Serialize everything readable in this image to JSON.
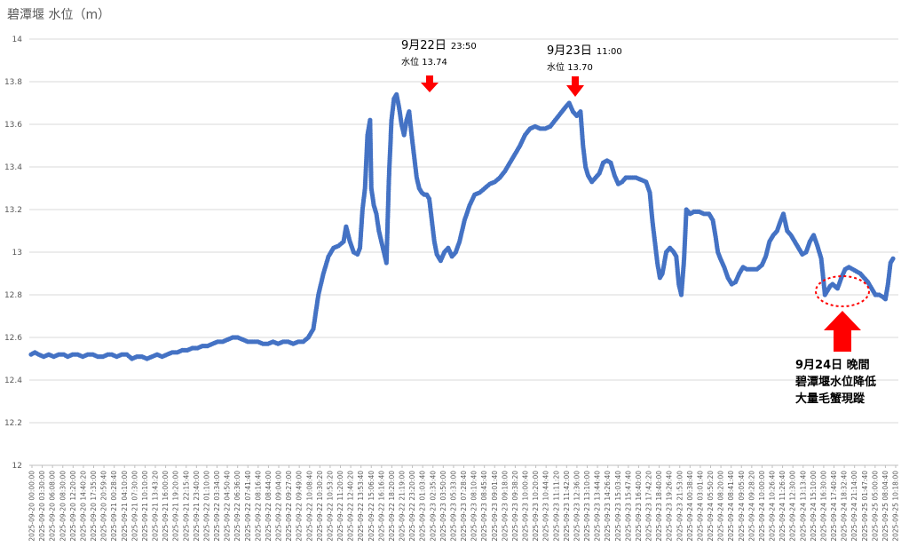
{
  "chart_data": {
    "type": "scatter",
    "title": "碧潭堰 水位（m）",
    "xlabel": "",
    "ylabel": "",
    "ylim": [
      12,
      14
    ],
    "y_ticks": [
      "12",
      "12.2",
      "12.4",
      "12.6",
      "12.8",
      "13",
      "13.2",
      "13.4",
      "13.6",
      "13.8",
      "14"
    ],
    "grid": true,
    "x_tick_labels": [
      "2025-09-20 00:00:00",
      "2025-09-20 03:30:00",
      "2025-09-20 06:08:00",
      "2025-09-20 08:30:00",
      "2025-09-20 12:20:00",
      "2025-09-20 14:40:20",
      "2025-09-20 17:35:00",
      "2025-09-20 20:59:40",
      "2025-09-21 00:28:40",
      "2025-09-21 04:10:00",
      "2025-09-21 07:30:00",
      "2025-09-21 10:10:00",
      "2025-09-21 13:43:20",
      "2025-09-21 16:00:00",
      "2025-09-21 19:20:00",
      "2025-09-21 22:15:40",
      "2025-09-21 23:40:00",
      "2025-09-22 01:10:00",
      "2025-09-22 03:34:00",
      "2025-09-22 04:50:40",
      "2025-09-22 06:36:00",
      "2025-09-22 07:41:40",
      "2025-09-22 08:16:40",
      "2025-09-22 08:44:00",
      "2025-09-22 09:04:00",
      "2025-09-22 09:27:00",
      "2025-09-22 09:49:00",
      "2025-09-22 10:08:40",
      "2025-09-22 10:30:20",
      "2025-09-22 10:53:20",
      "2025-09-22 11:20:00",
      "2025-09-22 12:40:20",
      "2025-09-22 13:53:40",
      "2025-09-22 15:06:40",
      "2025-09-22 16:16:40",
      "2025-09-22 18:20:00",
      "2025-09-22 21:19:00",
      "2025-09-22 23:20:00",
      "2025-09-23 01:03:40",
      "2025-09-23 02:35:40",
      "2025-09-23 03:50:00",
      "2025-09-23 05:33:00",
      "2025-09-23 07:28:40",
      "2025-09-23 08:10:40",
      "2025-09-23 08:45:40",
      "2025-09-23 09:01:40",
      "2025-09-23 09:18:00",
      "2025-09-23 09:38:20",
      "2025-09-23 10:00:40",
      "2025-09-23 10:20:00",
      "2025-09-23 10:44:40",
      "2025-09-23 11:11:20",
      "2025-09-23 11:42:00",
      "2025-09-23 12:36:00",
      "2025-09-23 13:10:00",
      "2025-09-23 13:44:40",
      "2025-09-23 14:26:40",
      "2025-09-23 15:03:40",
      "2025-09-23 15:47:40",
      "2025-09-23 16:40:00",
      "2025-09-23 17:42:20",
      "2025-09-23 18:40:00",
      "2025-09-23 19:26:40",
      "2025-09-23 21:53:00",
      "2025-09-24 00:38:40",
      "2025-09-24 03:01:40",
      "2025-09-24 05:50:20",
      "2025-09-24 08:20:00",
      "2025-09-24 08:41:40",
      "2025-09-24 09:05:40",
      "2025-09-24 09:28:20",
      "2025-09-24 10:00:00",
      "2025-09-24 10:26:40",
      "2025-09-24 11:26:40",
      "2025-09-24 12:30:00",
      "2025-09-24 13:13:40",
      "2025-09-24 15:10:00",
      "2025-09-24 16:30:00",
      "2025-09-24 17:40:40",
      "2025-09-24 18:32:40",
      "2025-09-24 21:14:00",
      "2025-09-25 01:47:40",
      "2025-09-25 05:00:00",
      "2025-09-25 08:04:40",
      "2025-09-25 10:18:00"
    ],
    "series": [
      {
        "color": "#4472c4",
        "values": [
          [
            0,
            12.52
          ],
          [
            3,
            12.53
          ],
          [
            6,
            12.52
          ],
          [
            10,
            12.51
          ],
          [
            14,
            12.52
          ],
          [
            18,
            12.51
          ],
          [
            22,
            12.52
          ],
          [
            26,
            12.52
          ],
          [
            29,
            12.51
          ],
          [
            33,
            12.52
          ],
          [
            37,
            12.52
          ],
          [
            41,
            12.51
          ],
          [
            45,
            12.52
          ],
          [
            49,
            12.52
          ],
          [
            53,
            12.51
          ],
          [
            57,
            12.51
          ],
          [
            61,
            12.52
          ],
          [
            64,
            12.52
          ],
          [
            68,
            12.51
          ],
          [
            72,
            12.52
          ],
          [
            76,
            12.52
          ],
          [
            80,
            12.5
          ],
          [
            84,
            12.51
          ],
          [
            88,
            12.51
          ],
          [
            92,
            12.5
          ],
          [
            96,
            12.51
          ],
          [
            100,
            12.52
          ],
          [
            104,
            12.51
          ],
          [
            108,
            12.52
          ],
          [
            112,
            12.53
          ],
          [
            116,
            12.53
          ],
          [
            120,
            12.54
          ],
          [
            124,
            12.54
          ],
          [
            128,
            12.55
          ],
          [
            132,
            12.55
          ],
          [
            136,
            12.56
          ],
          [
            140,
            12.56
          ],
          [
            144,
            12.57
          ],
          [
            148,
            12.58
          ],
          [
            152,
            12.58
          ],
          [
            156,
            12.59
          ],
          [
            160,
            12.6
          ],
          [
            164,
            12.6
          ],
          [
            168,
            12.59
          ],
          [
            172,
            12.58
          ],
          [
            176,
            12.58
          ],
          [
            180,
            12.58
          ],
          [
            184,
            12.57
          ],
          [
            188,
            12.57
          ],
          [
            192,
            12.58
          ],
          [
            196,
            12.57
          ],
          [
            200,
            12.58
          ],
          [
            204,
            12.58
          ],
          [
            208,
            12.57
          ],
          [
            212,
            12.58
          ],
          [
            216,
            12.58
          ],
          [
            220,
            12.6
          ],
          [
            224,
            12.64
          ],
          [
            228,
            12.8
          ],
          [
            232,
            12.9
          ],
          [
            236,
            12.98
          ],
          [
            240,
            13.02
          ],
          [
            244,
            13.03
          ],
          [
            248,
            13.05
          ],
          [
            250,
            13.12
          ],
          [
            253,
            13.05
          ],
          [
            256,
            13.0
          ],
          [
            259,
            12.99
          ],
          [
            261,
            13.02
          ],
          [
            263,
            13.2
          ],
          [
            265,
            13.3
          ],
          [
            267,
            13.55
          ],
          [
            269,
            13.62
          ],
          [
            270,
            13.3
          ],
          [
            272,
            13.22
          ],
          [
            274,
            13.18
          ],
          [
            276,
            13.1
          ],
          [
            278,
            13.05
          ],
          [
            280,
            13.0
          ],
          [
            282,
            12.95
          ],
          [
            284,
            13.35
          ],
          [
            286,
            13.62
          ],
          [
            288,
            13.72
          ],
          [
            290,
            13.74
          ],
          [
            292,
            13.68
          ],
          [
            294,
            13.6
          ],
          [
            296,
            13.55
          ],
          [
            298,
            13.62
          ],
          [
            300,
            13.66
          ],
          [
            302,
            13.55
          ],
          [
            304,
            13.45
          ],
          [
            306,
            13.35
          ],
          [
            308,
            13.3
          ],
          [
            310,
            13.28
          ],
          [
            312,
            13.27
          ],
          [
            314,
            13.27
          ],
          [
            316,
            13.25
          ],
          [
            318,
            13.15
          ],
          [
            320,
            13.05
          ],
          [
            322,
            12.99
          ],
          [
            325,
            12.96
          ],
          [
            328,
            13.0
          ],
          [
            331,
            13.02
          ],
          [
            334,
            12.98
          ],
          [
            337,
            13.0
          ],
          [
            340,
            13.05
          ],
          [
            344,
            13.15
          ],
          [
            348,
            13.22
          ],
          [
            352,
            13.27
          ],
          [
            356,
            13.28
          ],
          [
            360,
            13.3
          ],
          [
            364,
            13.32
          ],
          [
            368,
            13.33
          ],
          [
            372,
            13.35
          ],
          [
            376,
            13.38
          ],
          [
            380,
            13.42
          ],
          [
            384,
            13.46
          ],
          [
            388,
            13.5
          ],
          [
            392,
            13.55
          ],
          [
            396,
            13.58
          ],
          [
            400,
            13.59
          ],
          [
            404,
            13.58
          ],
          [
            408,
            13.58
          ],
          [
            412,
            13.59
          ],
          [
            416,
            13.62
          ],
          [
            420,
            13.65
          ],
          [
            424,
            13.68
          ],
          [
            427,
            13.7
          ],
          [
            430,
            13.66
          ],
          [
            433,
            13.64
          ],
          [
            436,
            13.66
          ],
          [
            438,
            13.5
          ],
          [
            440,
            13.4
          ],
          [
            442,
            13.36
          ],
          [
            445,
            13.33
          ],
          [
            448,
            13.35
          ],
          [
            451,
            13.37
          ],
          [
            454,
            13.42
          ],
          [
            457,
            13.43
          ],
          [
            460,
            13.42
          ],
          [
            463,
            13.36
          ],
          [
            466,
            13.32
          ],
          [
            469,
            13.33
          ],
          [
            472,
            13.35
          ],
          [
            476,
            13.35
          ],
          [
            480,
            13.35
          ],
          [
            484,
            13.34
          ],
          [
            488,
            13.33
          ],
          [
            491,
            13.28
          ],
          [
            493,
            13.15
          ],
          [
            495,
            13.05
          ],
          [
            497,
            12.95
          ],
          [
            499,
            12.88
          ],
          [
            501,
            12.9
          ],
          [
            504,
            13.0
          ],
          [
            507,
            13.02
          ],
          [
            510,
            13.0
          ],
          [
            512,
            12.98
          ],
          [
            514,
            12.85
          ],
          [
            516,
            12.8
          ],
          [
            518,
            12.95
          ],
          [
            520,
            13.2
          ],
          [
            523,
            13.18
          ],
          [
            526,
            13.19
          ],
          [
            530,
            13.19
          ],
          [
            534,
            13.18
          ],
          [
            538,
            13.18
          ],
          [
            541,
            13.15
          ],
          [
            543,
            13.08
          ],
          [
            545,
            13.0
          ],
          [
            547,
            12.97
          ],
          [
            550,
            12.93
          ],
          [
            553,
            12.88
          ],
          [
            556,
            12.85
          ],
          [
            559,
            12.86
          ],
          [
            562,
            12.9
          ],
          [
            565,
            12.93
          ],
          [
            568,
            12.92
          ],
          [
            572,
            12.92
          ],
          [
            576,
            12.92
          ],
          [
            580,
            12.94
          ],
          [
            583,
            12.98
          ],
          [
            586,
            13.05
          ],
          [
            589,
            13.08
          ],
          [
            592,
            13.1
          ],
          [
            595,
            13.15
          ],
          [
            597,
            13.18
          ],
          [
            600,
            13.1
          ],
          [
            603,
            13.08
          ],
          [
            606,
            13.05
          ],
          [
            609,
            13.02
          ],
          [
            612,
            12.99
          ],
          [
            615,
            13.0
          ],
          [
            618,
            13.05
          ],
          [
            621,
            13.08
          ],
          [
            624,
            13.03
          ],
          [
            627,
            12.97
          ],
          [
            630,
            12.8
          ],
          [
            632,
            12.82
          ],
          [
            634,
            12.84
          ],
          [
            636,
            12.85
          ],
          [
            638,
            12.84
          ],
          [
            640,
            12.83
          ],
          [
            643,
            12.88
          ],
          [
            646,
            12.92
          ],
          [
            649,
            12.93
          ],
          [
            652,
            12.92
          ],
          [
            655,
            12.91
          ],
          [
            658,
            12.9
          ],
          [
            661,
            12.88
          ],
          [
            664,
            12.86
          ],
          [
            667,
            12.83
          ],
          [
            670,
            12.8
          ],
          [
            673,
            12.8
          ],
          [
            676,
            12.79
          ],
          [
            678,
            12.78
          ],
          [
            680,
            12.85
          ],
          [
            682,
            12.95
          ],
          [
            684,
            12.97
          ]
        ]
      }
    ],
    "annotations": [
      {
        "date": "9月22日",
        "time": "23:50",
        "level_label": "水位",
        "level": "13.74"
      },
      {
        "date": "9月23日",
        "time": "11:00",
        "level_label": "水位",
        "level": "13.70"
      },
      {
        "lines": [
          "9月24日 晚間",
          "碧潭堰水位降低",
          "大量毛蟹現蹤"
        ]
      }
    ]
  }
}
